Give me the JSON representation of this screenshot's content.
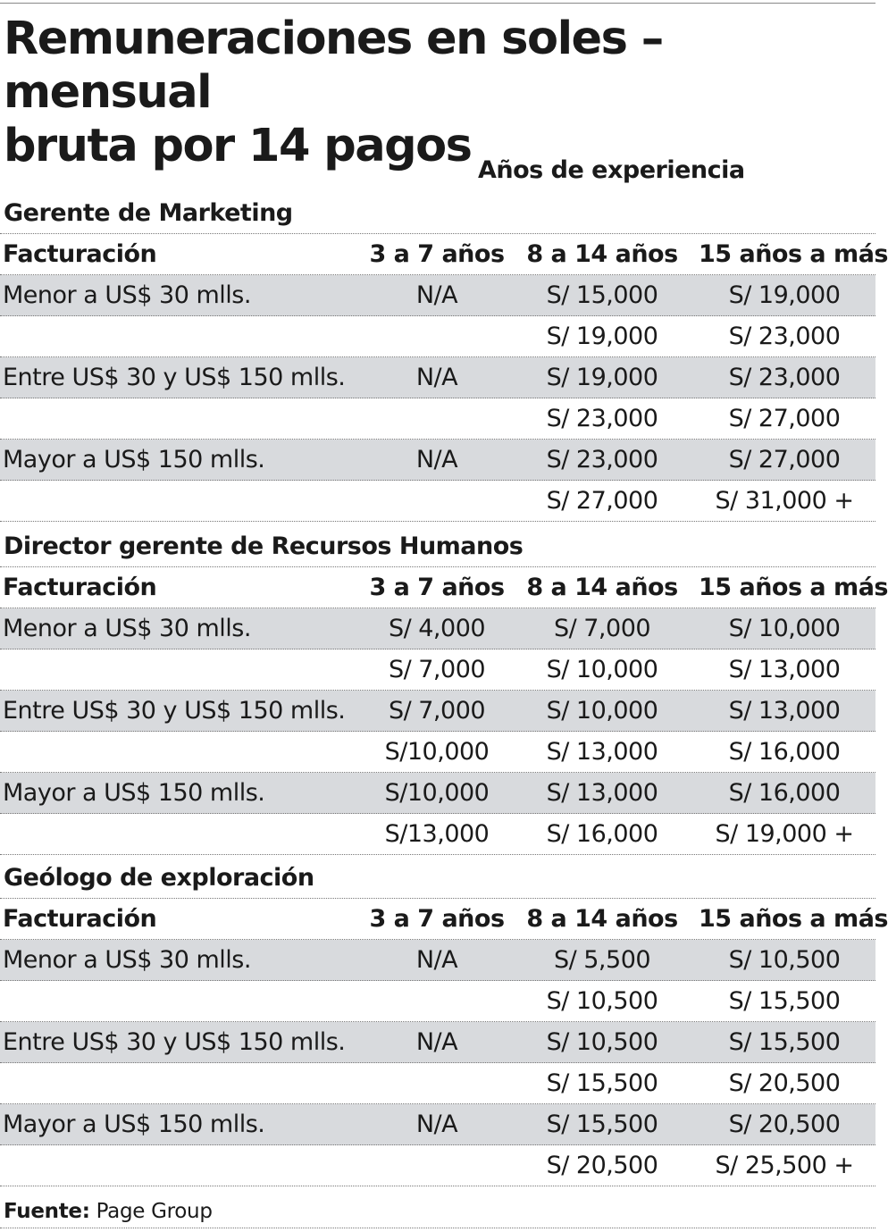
{
  "title": "Remuneraciones en soles – mensual\nbruta por 14 pagos",
  "experience_header": "Años de experiencia",
  "columns": [
    "Facturación",
    "3 a 7 años",
    "8 a 14 años",
    "15 años a más"
  ],
  "sections": [
    {
      "title": "Gerente de Marketing",
      "rows": [
        [
          "Menor a US$ 30 mlls.",
          "N/A",
          "S/ 15,000",
          "S/ 19,000"
        ],
        [
          "",
          "",
          "S/ 19,000",
          "S/ 23,000"
        ],
        [
          "Entre US$ 30 y US$ 150 mlls.",
          "N/A",
          "S/ 19,000",
          "S/ 23,000"
        ],
        [
          "",
          "",
          "S/ 23,000",
          "S/ 27,000"
        ],
        [
          "Mayor a US$ 150 mlls.",
          "N/A",
          "S/ 23,000",
          "S/ 27,000"
        ],
        [
          "",
          "",
          "S/ 27,000",
          "S/ 31,000 +"
        ]
      ]
    },
    {
      "title": "Director gerente de Recursos Humanos",
      "rows": [
        [
          "Menor a US$ 30 mlls.",
          "S/ 4,000",
          "S/  7,000",
          "S/ 10,000"
        ],
        [
          "",
          "S/ 7,000",
          "S/ 10,000",
          "S/ 13,000"
        ],
        [
          "Entre US$ 30 y US$ 150 mlls.",
          "S/ 7,000",
          "S/ 10,000",
          "S/ 13,000"
        ],
        [
          "",
          "S/10,000",
          "S/ 13,000",
          "S/ 16,000"
        ],
        [
          "Mayor a US$ 150 mlls.",
          "S/10,000",
          "S/ 13,000",
          "S/ 16,000"
        ],
        [
          "",
          "S/13,000",
          "S/ 16,000",
          "S/ 19,000 +"
        ]
      ]
    },
    {
      "title": "Geólogo de exploración",
      "rows": [
        [
          "Menor a US$ 30 mlls.",
          "N/A",
          "S/  5,500",
          "S/ 10,500"
        ],
        [
          "",
          "",
          "S/ 10,500",
          "S/ 15,500"
        ],
        [
          "Entre US$ 30 y US$ 150 mlls.",
          "N/A",
          "S/ 10,500",
          "S/ 15,500"
        ],
        [
          "",
          "",
          "S/ 15,500",
          "S/ 20,500"
        ],
        [
          "Mayor a US$ 150 mlls.",
          "N/A",
          "S/ 15,500",
          "S/ 20,500"
        ],
        [
          "",
          "",
          "S/ 20,500",
          "S/ 25,500 +"
        ]
      ]
    }
  ],
  "source_label": "Fuente:",
  "source_text": " Page Group",
  "colors": {
    "row_shade": "#d8dadd",
    "text": "#1a1a1a"
  }
}
